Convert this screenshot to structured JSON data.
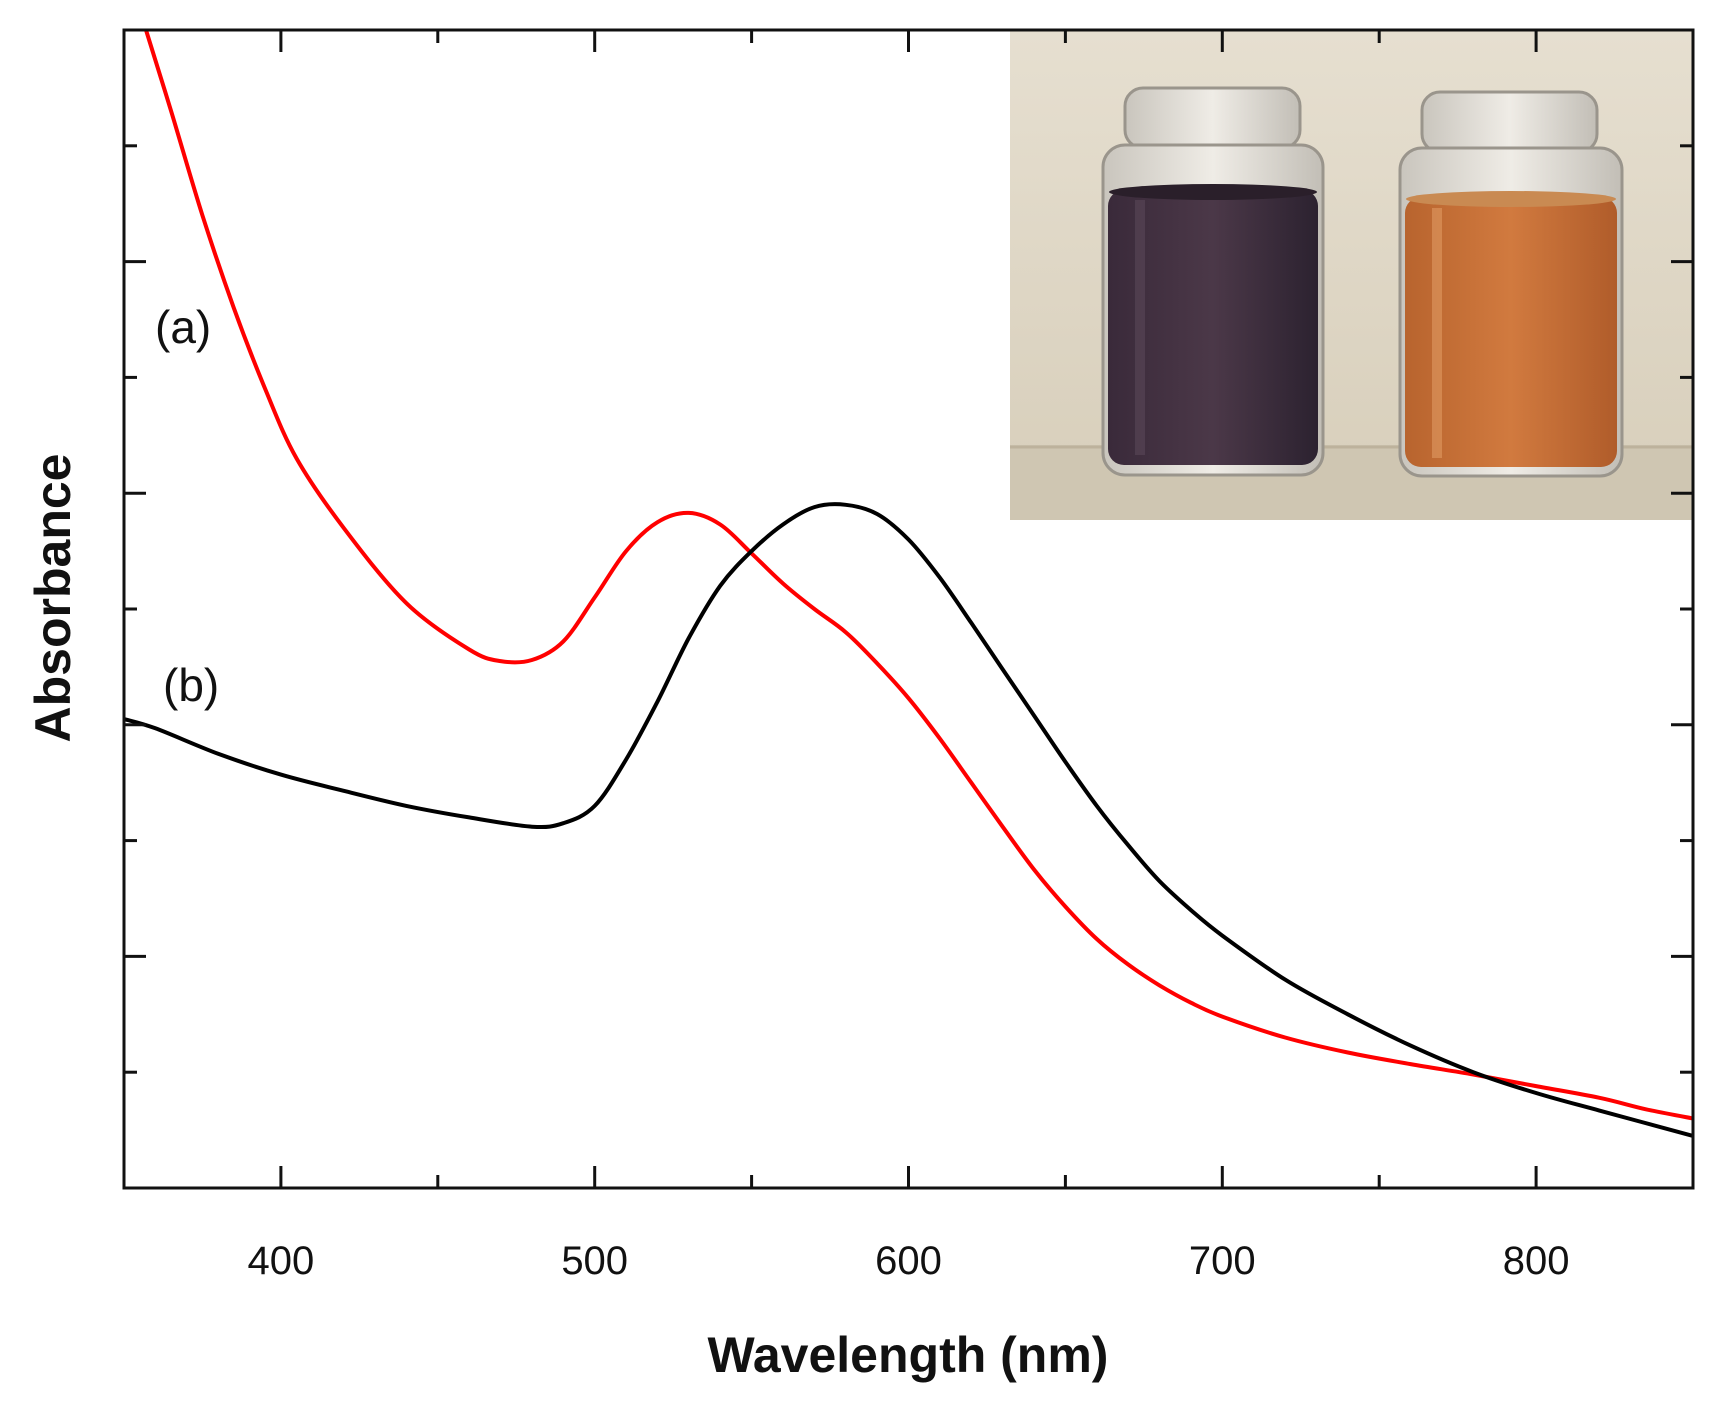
{
  "chart_data": {
    "type": "line",
    "title": "",
    "xlabel": "Wavelength (nm)",
    "ylabel": "Absorbance",
    "xlim": [
      350,
      850
    ],
    "ylim": [
      0,
      10
    ],
    "xticks": [
      "400",
      "500",
      "600",
      "700",
      "800"
    ],
    "y_tick_labels_shown": false,
    "grid": false,
    "inset": "photo-of-two-vials",
    "colors": {
      "a": "#ff0000",
      "b": "#000000"
    },
    "series": [
      {
        "label": "(a)",
        "color": "#ff0000",
        "x": [
          357,
          365,
          375,
          385,
          395,
          405,
          420,
          440,
          460,
          470,
          480,
          490,
          500,
          510,
          520,
          530,
          540,
          550,
          560,
          570,
          580,
          590,
          600,
          610,
          620,
          630,
          640,
          650,
          660,
          670,
          680,
          690,
          700,
          720,
          740,
          760,
          780,
          800,
          820,
          835,
          850
        ],
        "y": [
          10.0,
          9.3,
          8.4,
          7.6,
          6.9,
          6.3,
          5.7,
          5.05,
          4.65,
          4.55,
          4.56,
          4.72,
          5.1,
          5.5,
          5.75,
          5.83,
          5.73,
          5.48,
          5.22,
          5.0,
          4.8,
          4.53,
          4.23,
          3.88,
          3.5,
          3.12,
          2.75,
          2.43,
          2.15,
          1.93,
          1.75,
          1.6,
          1.48,
          1.3,
          1.17,
          1.07,
          0.98,
          0.88,
          0.78,
          0.68,
          0.6
        ]
      },
      {
        "label": "(b)",
        "color": "#000000",
        "x": [
          350,
          360,
          380,
          400,
          420,
          440,
          460,
          480,
          490,
          500,
          510,
          520,
          530,
          540,
          550,
          560,
          570,
          580,
          590,
          600,
          610,
          620,
          630,
          640,
          650,
          660,
          670,
          680,
          690,
          700,
          720,
          740,
          760,
          780,
          800,
          820,
          850
        ],
        "y": [
          4.05,
          3.97,
          3.75,
          3.57,
          3.43,
          3.3,
          3.2,
          3.12,
          3.15,
          3.3,
          3.7,
          4.2,
          4.75,
          5.2,
          5.5,
          5.73,
          5.88,
          5.9,
          5.82,
          5.6,
          5.27,
          4.88,
          4.48,
          4.08,
          3.68,
          3.3,
          2.96,
          2.65,
          2.4,
          2.18,
          1.8,
          1.5,
          1.23,
          1.0,
          0.82,
          0.67,
          0.45
        ]
      }
    ]
  }
}
